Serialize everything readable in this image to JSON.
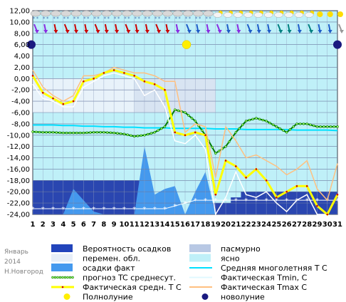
{
  "chart_data": {
    "type": "line",
    "y_ticks": [
      "12,00",
      "10,00",
      "8,00",
      "6,00",
      "4,00",
      "2,00",
      "0,00",
      "-2,00",
      "-4,00",
      "-6,00",
      "-8,00",
      "-10,00",
      "-12,00",
      "-14,00",
      "-16,00",
      "-18,00",
      "-20,00",
      "-22,00",
      "-24,00"
    ],
    "ylim": [
      -24,
      12
    ],
    "x_ticks": [
      "1",
      "2",
      "3",
      "4",
      "5",
      "6",
      "7",
      "8",
      "9",
      "10",
      "11",
      "12",
      "13",
      "14",
      "15",
      "16",
      "17",
      "18",
      "19",
      "20",
      "21",
      "22",
      "23",
      "24",
      "25",
      "26",
      "27",
      "28",
      "29",
      "30",
      "31"
    ],
    "corner_text": [
      "Январь",
      "2014",
      "Н.Новгород"
    ],
    "full_moon_day": 16,
    "new_moon_days": [
      1,
      31
    ],
    "precip_probability_level": [
      -18,
      -18,
      -18,
      -18,
      -18,
      -18,
      -18,
      -18,
      -18,
      -18,
      -18,
      -24,
      -24,
      -24,
      -24,
      -24,
      -24,
      -22,
      -22,
      -22,
      -21,
      -20,
      -20,
      -20,
      -20,
      -20,
      -20,
      -20,
      -20,
      -20,
      -20
    ],
    "precip_actual_level": [
      -24,
      -24,
      -24,
      -24,
      -19.5,
      -21.5,
      -23.5,
      -24,
      -24,
      -24,
      -24,
      -12,
      -20.5,
      -19.5,
      -19,
      -24,
      -20,
      -16.5,
      -24,
      -24,
      -24,
      -24,
      -24,
      -24,
      -24,
      -24,
      -24,
      -24,
      -24,
      -24,
      -24
    ],
    "cloudy_band": [
      -6,
      0
    ],
    "series": [
      {
        "name": "Средняя многолетняя T C",
        "color": "#00e0ff",
        "values": [
          -8.2,
          -8.2,
          -8.2,
          -8.3,
          -8.3,
          -8.4,
          -8.4,
          -8.5,
          -8.5,
          -8.6,
          -8.6,
          -8.7,
          -8.7,
          -8.7,
          -8.8,
          -8.8,
          -8.8,
          -8.8,
          -8.9,
          -8.9,
          -8.9,
          -9.0,
          -9.0,
          -9.0,
          -9.0,
          -9.0,
          -9.1,
          -9.1,
          -9.1,
          -9.1,
          -9.2
        ]
      },
      {
        "name": "прогноз TC среднесут.",
        "color": "#007a00",
        "values": [
          -9.4,
          -9.5,
          -9.5,
          -9.6,
          -9.6,
          -9.6,
          -9.5,
          -9.5,
          -9.6,
          -9.8,
          -10.2,
          -10.0,
          -9.5,
          -8.5,
          -5.5,
          -6.0,
          -7.5,
          -10.0,
          -13.2,
          -12.0,
          -9.5,
          -7.5,
          -7.0,
          -7.5,
          -8.5,
          -9.5,
          -8.0,
          -8.0,
          -8.5,
          -8.5,
          -8.5
        ]
      },
      {
        "name": "Фактическая Tmax, C",
        "color": "#ffc080",
        "values": [
          1.5,
          -1.5,
          -3.0,
          -4.0,
          -3.0,
          0.5,
          0.5,
          1.0,
          2.0,
          1.5,
          1.0,
          1.0,
          0.5,
          -0.5,
          -0.5,
          -9.5,
          -8.0,
          -8.5,
          -17.5,
          -8.5,
          -11.0,
          -14.0,
          -13.5,
          -14.5,
          -15.5,
          -17.0,
          -16.0,
          -14.5,
          -19.5,
          -21.5,
          -15.0
        ]
      },
      {
        "name": "Фактическая Tmin, C",
        "color": "#ffffff",
        "values": [
          -1.0,
          -3.5,
          -4.0,
          -5.0,
          -5.0,
          -1.5,
          -0.5,
          0.5,
          1.0,
          0.5,
          0.0,
          -3.0,
          -2.0,
          -5.0,
          -11.0,
          -11.5,
          -10.0,
          -12.5,
          -24.0,
          -21.0,
          -16.5,
          -20.5,
          -21.0,
          -20.0,
          -22.0,
          -23.5,
          -21.5,
          -20.5,
          -24.0,
          -24.0,
          -20.5
        ]
      },
      {
        "name": "Фактическая средн. T C",
        "color": "#ffff00",
        "values": [
          0.5,
          -2.5,
          -3.5,
          -4.5,
          -4.0,
          -0.5,
          0.0,
          1.0,
          1.5,
          1.0,
          0.5,
          -0.5,
          -1.0,
          -2.0,
          -9.5,
          -10.0,
          -9.5,
          -10.0,
          -20.5,
          -14.5,
          -15.5,
          -17.5,
          -16.0,
          -18.0,
          -21.0,
          -20.0,
          -19.0,
          -19.0,
          -22.5,
          -24.0,
          -20.5
        ]
      }
    ],
    "cold_series_values": [
      -23,
      -23,
      -23,
      -23,
      -23,
      -23,
      -23,
      -23,
      -23,
      -23,
      -23,
      -23,
      -23,
      -23,
      -22.5,
      -22,
      -21.5,
      -21.5,
      -21.5,
      -21.5,
      -21.5,
      -21.5,
      -21.5,
      -21.5,
      -21.5,
      -21.5,
      -21.5,
      -21.5,
      -21.5,
      -21.5,
      -21.5
    ],
    "legend": [
      {
        "label": "Вероятность осадков",
        "swatch": "#2244bb",
        "kind": "box"
      },
      {
        "label": "пасмурно",
        "swatch": "#b8c8e4",
        "kind": "box"
      },
      {
        "label": "перемен. обл.",
        "swatch": "#e6eef8",
        "kind": "box"
      },
      {
        "label": "ясно",
        "swatch": "#bff0f8",
        "kind": "box"
      },
      {
        "label": "осадки факт",
        "swatch": "#4499ee",
        "kind": "box"
      },
      {
        "label": "Средняя многолетняя T C",
        "swatch": "#00e0ff",
        "kind": "line"
      },
      {
        "label": "прогноз TC среднесут.",
        "swatch": "#007a00",
        "kind": "dotline"
      },
      {
        "label": "Фактическая Tmin, C",
        "swatch": "#e0f8ff",
        "kind": "line"
      },
      {
        "label": "Фактическая средн. T C",
        "swatch": "#ffff00",
        "kind": "thick"
      },
      {
        "label": "Фактическая Tmax C",
        "swatch": "#ffc080",
        "kind": "line"
      },
      {
        "label": "Полнолуние",
        "swatch": "#ffee00",
        "kind": "circle"
      },
      {
        "label": "новолуние",
        "swatch": "#1a1a80",
        "kind": "circle"
      }
    ],
    "weather_icons": [
      "snow-cloud-icon",
      "snow-cloud-icon",
      "snow-cloud-icon",
      "snow-cloud-icon",
      "snow-cloud-icon",
      "snow-cloud-icon",
      "snow-cloud-icon",
      "snow-cloud-icon",
      "snow-cloud-icon",
      "snow-cloud-icon",
      "snow-cloud-icon",
      "snow-cloud-icon",
      "snow-cloud-icon",
      "snow-cloud-icon",
      "snow-cloud-icon",
      "snow-cloud-icon",
      "snow-cloud-icon",
      "snow-cloud-icon",
      "sun-cloud-icon",
      "sun-cloud-icon",
      "sun-cloud-icon",
      "sun-cloud-icon",
      "sun-cloud-icon",
      "sun-cloud-icon",
      "sun-cloud-icon",
      "sun-cloud-icon",
      "sun-cloud-icon",
      "sun-cloud-icon",
      "sun-icon",
      "sun-icon",
      "sun-icon"
    ],
    "wind_arrow_colors": [
      "#8a2be2",
      "#8a2be2",
      "#cc0000",
      "#cc0000",
      "#cc0000",
      "#cc0000",
      "#cc0000",
      "#cc0000",
      "#cc0000",
      "#cc0000",
      "#cc0000",
      "#cc0000",
      "#cc0000",
      "#cc0000",
      "#8a2be2",
      "#1e5cc8",
      "#1e5cc8",
      "#8a2be2",
      "#8a2be2",
      "#1e5cc8",
      "#8a2be2",
      "#1e5cc8",
      "#1e5cc8",
      "#1e5cc8",
      "#008080",
      "#008080",
      "#1e5cc8",
      "#008080",
      "#1e5cc8",
      "#1e5cc8",
      "#999999"
    ]
  }
}
